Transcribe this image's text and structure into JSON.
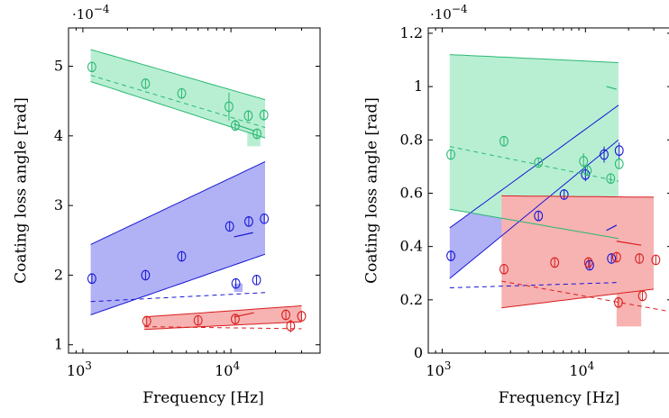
{
  "chart_data": [
    {
      "type": "scatter",
      "title": "",
      "xlabel": "Frequency [Hz]",
      "ylabel": "Coating loss angle [rad]",
      "xscale": "log",
      "xlim": [
        800,
        40000
      ],
      "ylim": [
        0.88,
        5.55
      ],
      "y_multiplier_label": "·10",
      "y_multiplier_exp": "−4",
      "xticks": [
        {
          "v": 1000,
          "base": "10",
          "exp": "3"
        },
        {
          "v": 10000,
          "base": "10",
          "exp": "4"
        }
      ],
      "yticks": [
        {
          "v": 1,
          "label": "1"
        },
        {
          "v": 2,
          "label": "2"
        },
        {
          "v": 3,
          "label": "3"
        },
        {
          "v": 4,
          "label": "4"
        },
        {
          "v": 5,
          "label": "5"
        }
      ],
      "grid": false,
      "series": [
        {
          "color": "#2ab872",
          "fill": "#b8efd3",
          "band": {
            "x0": 1130,
            "x1": 17000,
            "lower": [
              4.78,
              3.97
            ],
            "upper": [
              5.24,
              4.52
            ]
          },
          "fit_dashed": {
            "x": [
              1130,
              17000
            ],
            "y": [
              4.87,
              4.12
            ]
          },
          "segments": [
            {
              "x": [
                10500,
                14500
              ],
              "y": [
                4.17,
                4.07
              ]
            }
          ],
          "extra_fill": [
            [
              12900,
              3.85
            ],
            [
              15800,
              3.85
            ],
            [
              15800,
              4.15
            ],
            [
              12900,
              4.15
            ]
          ],
          "points": [
            {
              "x": 1150,
              "y": 4.99,
              "err": 0.04
            },
            {
              "x": 2650,
              "y": 4.75,
              "err": 0.03
            },
            {
              "x": 4650,
              "y": 4.61,
              "err": 0.04
            },
            {
              "x": 9700,
              "y": 4.42,
              "err": 0.2
            },
            {
              "x": 10700,
              "y": 4.15,
              "err": 0.08
            },
            {
              "x": 13100,
              "y": 4.29,
              "err": 0.04
            },
            {
              "x": 15000,
              "y": 4.03,
              "err": 0.07
            },
            {
              "x": 16700,
              "y": 4.3,
              "err": 0.08
            }
          ]
        },
        {
          "color": "#1616d6",
          "fill": "#b1b1f6",
          "band": {
            "x0": 1130,
            "x1": 17000,
            "lower": [
              1.43,
              2.3
            ],
            "upper": [
              2.44,
              3.63
            ]
          },
          "fit_dashed": {
            "x": [
              1130,
              17000
            ],
            "y": [
              1.62,
              1.75
            ]
          },
          "segments": [
            {
              "x": [
                10500,
                14100
              ],
              "y": [
                2.55,
                2.61
              ]
            }
          ],
          "extra_fill": [
            [
              10500,
              1.76
            ],
            [
              12000,
              1.76
            ],
            [
              12000,
              1.88
            ],
            [
              10500,
              1.88
            ]
          ],
          "points": [
            {
              "x": 1150,
              "y": 1.95,
              "err": 0.03
            },
            {
              "x": 2650,
              "y": 2.0,
              "err": 0.03
            },
            {
              "x": 4650,
              "y": 2.27,
              "err": 0.03
            },
            {
              "x": 9800,
              "y": 2.7,
              "err": 0.03
            },
            {
              "x": 10800,
              "y": 1.88,
              "err": 0.03
            },
            {
              "x": 13200,
              "y": 2.77,
              "err": 0.03
            },
            {
              "x": 14900,
              "y": 1.93,
              "err": 0.03
            },
            {
              "x": 16800,
              "y": 2.81,
              "err": 0.03
            }
          ]
        },
        {
          "color": "#d81e1e",
          "fill": "#f7b2b2",
          "band": {
            "x0": 2600,
            "x1": 30000,
            "lower": [
              1.22,
              1.33
            ],
            "upper": [
              1.4,
              1.56
            ]
          },
          "fit_dashed": {
            "x": [
              2600,
              30000
            ],
            "y": [
              1.26,
              1.23
            ]
          },
          "segments": [
            {
              "x": [
                10500,
                14300
              ],
              "y": [
                1.4,
                1.46
              ]
            }
          ],
          "extra_fill": [],
          "points": [
            {
              "x": 2700,
              "y": 1.34,
              "err": 0.03
            },
            {
              "x": 6000,
              "y": 1.35,
              "err": 0.03
            },
            {
              "x": 10700,
              "y": 1.37,
              "err": 0.03
            },
            {
              "x": 23500,
              "y": 1.43,
              "err": 0.04
            },
            {
              "x": 25300,
              "y": 1.27,
              "err": 0.09
            },
            {
              "x": 30000,
              "y": 1.41,
              "err": 0.03
            }
          ]
        }
      ]
    },
    {
      "type": "scatter",
      "title": "",
      "xlabel": "Frequency [Hz]",
      "ylabel": "Coating loss angle [rad]",
      "xscale": "log",
      "xlim": [
        800,
        40000
      ],
      "ylim": [
        0,
        1.22
      ],
      "y_multiplier_label": "·10",
      "y_multiplier_exp": "−4",
      "xticks": [
        {
          "v": 1000,
          "base": "10",
          "exp": "3"
        },
        {
          "v": 10000,
          "base": "10",
          "exp": "4"
        }
      ],
      "yticks": [
        {
          "v": 0,
          "label": "0"
        },
        {
          "v": 0.2,
          "label": "0.2"
        },
        {
          "v": 0.4,
          "label": "0.4"
        },
        {
          "v": 0.6,
          "label": "0.6"
        },
        {
          "v": 0.8,
          "label": "0.8"
        },
        {
          "v": 1,
          "label": "1"
        },
        {
          "v": 1.2,
          "label": "1.2"
        }
      ],
      "grid": false,
      "series": [
        {
          "color": "#1616d6",
          "fill": "#b1b1f6",
          "band": {
            "x0": 1130,
            "x1": 17000,
            "lower": [
              0.28,
              0.8
            ],
            "upper": [
              0.47,
              0.93
            ]
          },
          "fit_dashed": {
            "x": [
              1130,
              17000
            ],
            "y": [
              0.245,
              0.265
            ]
          },
          "segments": [
            {
              "x": [
                14000,
                16500
              ],
              "y": [
                0.46,
                0.48
              ]
            }
          ],
          "extra_fill": [],
          "points": [
            {
              "x": 1150,
              "y": 0.365,
              "err": 0.01
            },
            {
              "x": 4700,
              "y": 0.515,
              "err": 0.015
            },
            {
              "x": 7100,
              "y": 0.595,
              "err": 0.02
            },
            {
              "x": 10000,
              "y": 0.67,
              "err": 0.025
            },
            {
              "x": 10700,
              "y": 0.33,
              "err": 0.015
            },
            {
              "x": 13500,
              "y": 0.745,
              "err": 0.03
            },
            {
              "x": 15200,
              "y": 0.355,
              "err": 0.015
            },
            {
              "x": 17200,
              "y": 0.76,
              "err": 0.03
            }
          ]
        },
        {
          "color": "#2ab872",
          "fill": "#b8efd3",
          "band": {
            "x0": 1130,
            "x1": 17000,
            "lower": [
              0.54,
              0.43
            ],
            "upper": [
              1.12,
              1.09
            ]
          },
          "fit_dashed": {
            "x": [
              1130,
              17000
            ],
            "y": [
              0.775,
              0.645
            ]
          },
          "segments": [
            {
              "x": [
                14000,
                16500
              ],
              "y": [
                1.0,
                0.99
              ]
            }
          ],
          "extra_fill": [],
          "points": [
            {
              "x": 1150,
              "y": 0.745,
              "err": 0.01
            },
            {
              "x": 2700,
              "y": 0.795,
              "err": 0.01
            },
            {
              "x": 4700,
              "y": 0.715,
              "err": 0.01
            },
            {
              "x": 9700,
              "y": 0.72,
              "err": 0.03
            },
            {
              "x": 10300,
              "y": 0.685,
              "err": 0.02
            },
            {
              "x": 15000,
              "y": 0.655,
              "err": 0.015
            },
            {
              "x": 17200,
              "y": 0.71,
              "err": 0.02
            }
          ]
        },
        {
          "color": "#d81e1e",
          "fill": "#f7b2b2",
          "band": {
            "x0": 2600,
            "x1": 30000,
            "lower": [
              0.17,
              0.24
            ],
            "upper": [
              0.59,
              0.585
            ]
          },
          "fit_dashed": {
            "x": [
              2600,
              40000
            ],
            "y": [
              0.27,
              0.155
            ]
          },
          "segments": [
            {
              "x": [
                16500,
                24500
              ],
              "y": [
                0.42,
                0.405
              ]
            }
          ],
          "extra_fill": [
            [
              16500,
              0.1
            ],
            [
              24500,
              0.1
            ],
            [
              24500,
              0.26
            ],
            [
              16500,
              0.26
            ]
          ],
          "points": [
            {
              "x": 2700,
              "y": 0.315,
              "err": 0.01
            },
            {
              "x": 6100,
              "y": 0.34,
              "err": 0.015
            },
            {
              "x": 10500,
              "y": 0.34,
              "err": 0.015
            },
            {
              "x": 16500,
              "y": 0.36,
              "err": 0.015
            },
            {
              "x": 17000,
              "y": 0.19,
              "err": 0.01
            },
            {
              "x": 23800,
              "y": 0.355,
              "err": 0.015
            },
            {
              "x": 25000,
              "y": 0.215,
              "err": 0.02
            },
            {
              "x": 31000,
              "y": 0.35,
              "err": 0.015
            }
          ]
        }
      ]
    }
  ]
}
